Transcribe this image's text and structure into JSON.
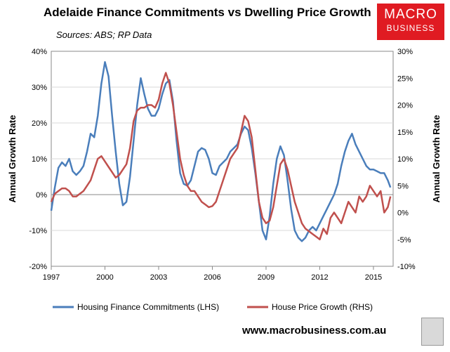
{
  "header": {
    "title": "Adelaide Finance Commitments vs Dwelling Price Growth",
    "subtitle": "Sources: ABS; RP Data"
  },
  "logo": {
    "line1": "MACRO",
    "line2": "BUSINESS",
    "color": "#e01b22"
  },
  "footer": {
    "website": "www.macrobusiness.com.au",
    "wolf_icon": "wolf-logo-icon"
  },
  "chart_data": {
    "type": "line",
    "ylabel_left": "Annual Growth Rate",
    "ylabel_right": "Annual Growth Rate",
    "x_range": [
      1997,
      2016.1
    ],
    "x_ticks": [
      1997,
      2000,
      2003,
      2006,
      2009,
      2012,
      2015
    ],
    "x_tick_labels": [
      "1997",
      "2000",
      "2003",
      "2006",
      "2009",
      "2012",
      "2015"
    ],
    "ylim_left": [
      -20,
      40
    ],
    "y_ticks_left": [
      -20,
      -10,
      0,
      10,
      20,
      30,
      40
    ],
    "y_tick_labels_left": [
      "-20%",
      "-10%",
      "0%",
      "10%",
      "20%",
      "30%",
      "40%"
    ],
    "ylim_right": [
      -10,
      30
    ],
    "y_ticks_right": [
      -10,
      -5,
      0,
      5,
      10,
      15,
      20,
      25,
      30
    ],
    "y_tick_labels_right": [
      "-10%",
      "-5%",
      "0%",
      "5%",
      "10%",
      "15%",
      "20%",
      "25%",
      "30%"
    ],
    "series": [
      {
        "name": "Housing Finance Commitments (LHS)",
        "axis": "left",
        "color": "#4a7ebb",
        "x": [
          1997.0,
          1997.2,
          1997.4,
          1997.6,
          1997.8,
          1998.0,
          1998.2,
          1998.4,
          1998.6,
          1998.8,
          1999.0,
          1999.2,
          1999.4,
          1999.6,
          1999.8,
          2000.0,
          2000.2,
          2000.4,
          2000.6,
          2000.8,
          2001.0,
          2001.2,
          2001.4,
          2001.6,
          2001.8,
          2002.0,
          2002.2,
          2002.4,
          2002.6,
          2002.8,
          2003.0,
          2003.2,
          2003.4,
          2003.6,
          2003.8,
          2004.0,
          2004.2,
          2004.4,
          2004.6,
          2004.8,
          2005.0,
          2005.2,
          2005.4,
          2005.6,
          2005.8,
          2006.0,
          2006.2,
          2006.4,
          2006.6,
          2006.8,
          2007.0,
          2007.2,
          2007.4,
          2007.6,
          2007.8,
          2008.0,
          2008.2,
          2008.4,
          2008.6,
          2008.8,
          2009.0,
          2009.2,
          2009.4,
          2009.6,
          2009.8,
          2010.0,
          2010.2,
          2010.4,
          2010.6,
          2010.8,
          2011.0,
          2011.2,
          2011.4,
          2011.6,
          2011.8,
          2012.0,
          2012.2,
          2012.4,
          2012.6,
          2012.8,
          2013.0,
          2013.2,
          2013.4,
          2013.6,
          2013.8,
          2014.0,
          2014.2,
          2014.4,
          2014.6,
          2014.8,
          2015.0,
          2015.2,
          2015.4,
          2015.6,
          2015.8,
          2015.95
        ],
        "values": [
          -4.5,
          2,
          7.5,
          9,
          8,
          10,
          6.5,
          5.5,
          6.5,
          8,
          12,
          17,
          16,
          22,
          31,
          37,
          33,
          22,
          12,
          3,
          -3,
          -2,
          5,
          15,
          25,
          32.5,
          28,
          24,
          22,
          22,
          24,
          28,
          31,
          32,
          26,
          15,
          6,
          3,
          2.5,
          4,
          8,
          12,
          13,
          12.5,
          10,
          6,
          5.5,
          8,
          9,
          10,
          12,
          13,
          14,
          17,
          19,
          18,
          13,
          6,
          -2,
          -10,
          -12.5,
          -6,
          3,
          10,
          13.5,
          11,
          4,
          -4,
          -10,
          -12,
          -13,
          -12,
          -10,
          -9,
          -10,
          -8,
          -6,
          -4,
          -2,
          0,
          3,
          8,
          12,
          15,
          17,
          14,
          12,
          10,
          8,
          7,
          7,
          6.5,
          6,
          6,
          4,
          2
        ]
      },
      {
        "name": "House Price Growth (RHS)",
        "axis": "right",
        "color": "#c0504d",
        "x": [
          1997.0,
          1997.2,
          1997.4,
          1997.6,
          1997.8,
          1998.0,
          1998.2,
          1998.4,
          1998.6,
          1998.8,
          1999.0,
          1999.2,
          1999.4,
          1999.6,
          1999.8,
          2000.0,
          2000.2,
          2000.4,
          2000.6,
          2000.8,
          2001.0,
          2001.2,
          2001.4,
          2001.6,
          2001.8,
          2002.0,
          2002.2,
          2002.4,
          2002.6,
          2002.8,
          2003.0,
          2003.2,
          2003.4,
          2003.6,
          2003.8,
          2004.0,
          2004.2,
          2004.4,
          2004.6,
          2004.8,
          2005.0,
          2005.2,
          2005.4,
          2005.6,
          2005.8,
          2006.0,
          2006.2,
          2006.4,
          2006.6,
          2006.8,
          2007.0,
          2007.2,
          2007.4,
          2007.6,
          2007.8,
          2008.0,
          2008.2,
          2008.4,
          2008.6,
          2008.8,
          2009.0,
          2009.2,
          2009.4,
          2009.6,
          2009.8,
          2010.0,
          2010.2,
          2010.4,
          2010.6,
          2010.8,
          2011.0,
          2011.2,
          2011.4,
          2011.6,
          2011.8,
          2012.0,
          2012.2,
          2012.4,
          2012.6,
          2012.8,
          2013.0,
          2013.2,
          2013.4,
          2013.6,
          2013.8,
          2014.0,
          2014.2,
          2014.4,
          2014.6,
          2014.8,
          2015.0,
          2015.2,
          2015.4,
          2015.6,
          2015.8,
          2015.95
        ],
        "values": [
          2,
          3.5,
          4,
          4.5,
          4.5,
          4,
          3,
          3,
          3.5,
          4,
          5,
          6,
          8,
          10,
          10.5,
          9.5,
          8.5,
          7.5,
          6.5,
          7,
          8,
          9,
          12,
          17,
          19,
          19.5,
          19.5,
          20,
          20,
          19.5,
          21,
          24,
          26,
          24,
          20,
          15,
          10,
          7,
          5,
          4,
          4,
          3,
          2,
          1.5,
          1,
          1.2,
          2,
          4,
          6,
          8,
          10,
          11,
          12,
          15,
          18,
          17,
          14,
          8,
          2,
          -1,
          -2,
          -1.5,
          1,
          5,
          9,
          10,
          8,
          5,
          2,
          0,
          -2,
          -3,
          -3.5,
          -4,
          -4.5,
          -5,
          -3,
          -4,
          -1,
          0,
          -1,
          -2,
          0,
          2,
          1,
          0,
          3,
          2,
          3,
          5,
          4,
          3,
          4,
          0,
          1,
          3
        ]
      }
    ]
  }
}
